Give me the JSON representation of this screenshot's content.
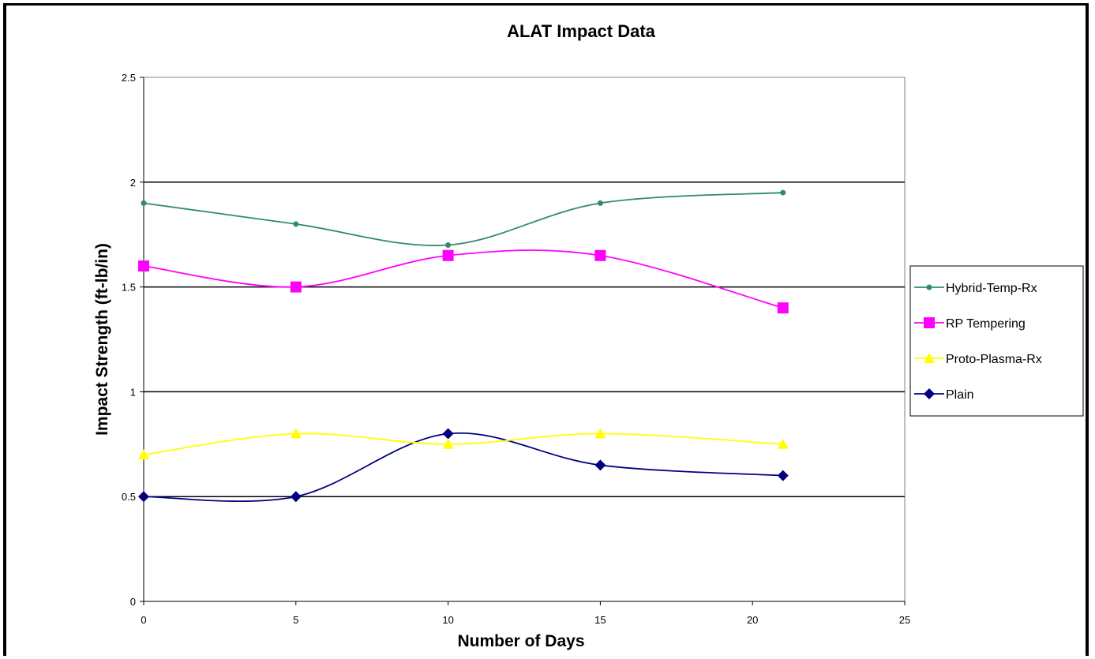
{
  "chart_data": {
    "type": "line",
    "title": "ALAT Impact Data",
    "xlabel": "Number of Days",
    "ylabel": "Impact Strength (ft-lb/in)",
    "xlim": [
      0,
      25
    ],
    "ylim": [
      0,
      2.5
    ],
    "x_ticks": [
      "0",
      "5",
      "10",
      "15",
      "20",
      "25"
    ],
    "y_ticks": [
      "0",
      "0.5",
      "1",
      "1.5",
      "2",
      "2.5"
    ],
    "gridlines": "horizontal",
    "legend_position": "right",
    "smoothed": true,
    "series": [
      {
        "name": "Hybrid-Temp-Rx",
        "color": "#2e8b6e",
        "marker": "dot",
        "points": [
          [
            0,
            1.9
          ],
          [
            5,
            1.8
          ],
          [
            10,
            1.7
          ],
          [
            15,
            1.9
          ],
          [
            21,
            1.95
          ]
        ]
      },
      {
        "name": "RP Tempering",
        "color": "#ff00ff",
        "marker": "square",
        "points": [
          [
            0,
            1.6
          ],
          [
            5,
            1.5
          ],
          [
            10,
            1.65
          ],
          [
            15,
            1.65
          ],
          [
            21,
            1.4
          ]
        ]
      },
      {
        "name": "Proto-Plasma-Rx",
        "color": "#ffff00",
        "marker": "triangle",
        "points": [
          [
            0,
            0.7
          ],
          [
            5,
            0.8
          ],
          [
            10,
            0.75
          ],
          [
            15,
            0.8
          ],
          [
            21,
            0.75
          ]
        ]
      },
      {
        "name": "Plain",
        "color": "#000080",
        "marker": "diamond",
        "points": [
          [
            0,
            0.5
          ],
          [
            5,
            0.5
          ],
          [
            10,
            0.8
          ],
          [
            15,
            0.65
          ],
          [
            21,
            0.6
          ]
        ]
      }
    ]
  }
}
